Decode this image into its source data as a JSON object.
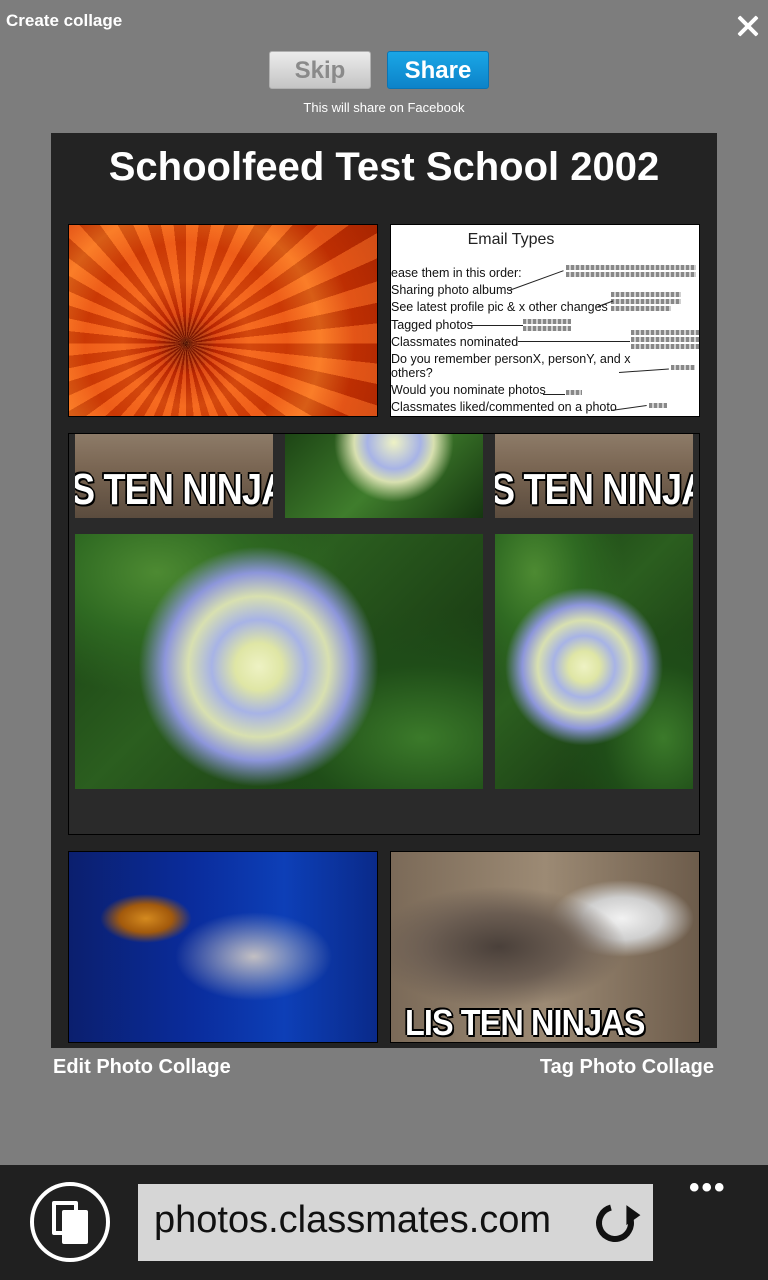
{
  "dialog": {
    "title": "Create collage",
    "skip_label": "Skip",
    "share_label": "Share",
    "share_note": "This will share on Facebook"
  },
  "collage": {
    "title": "Schoolfeed Test School 2002",
    "email_doc": {
      "heading": "Email Types",
      "lines": [
        "ease them in this order:",
        "Sharing photo albums",
        "See latest profile pic & x other changes",
        "Tagged  photos",
        "Classmates nominated",
        "Do you remember personX, personY, and x",
        "others?",
        "Would you nominate photos",
        "Classmates liked/commented on a photo"
      ]
    },
    "meme_text": "S TEN NINJA",
    "meme_text_bottom": "LIS TEN NINJAS"
  },
  "links": {
    "edit": "Edit Photo Collage",
    "tag": "Tag Photo Collage"
  },
  "browser": {
    "address": "photos.classmates.com",
    "more_label": "•••",
    "icons": {
      "tabs": "tabs-icon",
      "refresh": "refresh-icon",
      "close": "close-icon"
    }
  }
}
